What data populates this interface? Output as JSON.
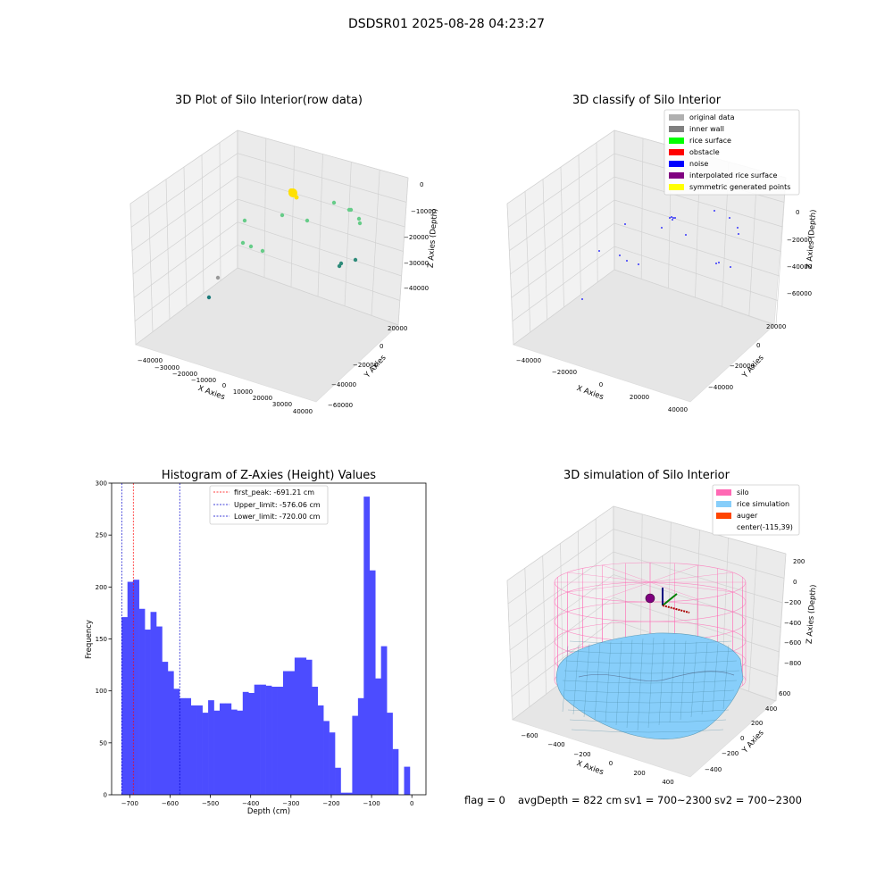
{
  "figure": {
    "suptitle": "DSDSR01 2025-08-28 04:23:27",
    "footer": {
      "flag": "flag = 0",
      "avg_depth": "avgDepth = 822 cm",
      "sv1": "sv1 = 700~2300",
      "sv2": "sv2 = 700~2300"
    }
  },
  "chart_data": [
    {
      "type": "scatter",
      "title": "3D Plot of Silo Interior(row data)",
      "xlabel": "X Axies",
      "ylabel": "Y Axies",
      "zlabel": "Z Axies (Depth)",
      "x_ticks": [
        "−40000",
        "−30000",
        "−20000",
        "−10000",
        "0",
        "10000",
        "20000",
        "30000",
        "40000"
      ],
      "y_ticks": [
        "−60000",
        "−40000",
        "−20000",
        "0",
        "20000"
      ],
      "z_ticks": [
        "0",
        "−10000",
        "−20000",
        "−30000",
        "−40000"
      ],
      "marker_colors": [
        "#ffe000",
        "#66cc88",
        "#2e8b7a",
        "#1a7a7a",
        "#999999"
      ]
    },
    {
      "type": "scatter",
      "title": "3D classify of Silo Interior",
      "xlabel": "X Axies",
      "ylabel": "Y Axies",
      "zlabel": "Z Axies (Depth)",
      "x_ticks": [
        "−40000",
        "−20000",
        "0",
        "20000",
        "40000"
      ],
      "y_ticks": [
        "−40000",
        "−20000",
        "0",
        "20000"
      ],
      "z_ticks": [
        "0",
        "−20000",
        "−40000",
        "−60000"
      ],
      "legend": [
        {
          "label": "original data",
          "color": "#b0b0b0"
        },
        {
          "label": "inner wall",
          "color": "#808080"
        },
        {
          "label": "rice surface",
          "color": "#00ff00"
        },
        {
          "label": "obstacle",
          "color": "#ff0000"
        },
        {
          "label": "noise",
          "color": "#0000ff"
        },
        {
          "label": "interpolated rice surface",
          "color": "#800080"
        },
        {
          "label": "symmetric generated points",
          "color": "#ffff00"
        }
      ]
    },
    {
      "type": "bar",
      "title": "Histogram of Z-Axies (Height) Values",
      "xlabel": "Depth (cm)",
      "ylabel": "Frequency",
      "xlim": [
        -745,
        35
      ],
      "ylim": [
        0,
        300
      ],
      "bin_width": 14.3,
      "bin_start": -720,
      "values": [
        171,
        205,
        207,
        179,
        159,
        176,
        162,
        128,
        119,
        102,
        93,
        93,
        86,
        86,
        79,
        91,
        81,
        88,
        88,
        82,
        81,
        99,
        98,
        106,
        106,
        105,
        104,
        104,
        119,
        119,
        132,
        132,
        130,
        104,
        86,
        71,
        60,
        26,
        2,
        2,
        76,
        93,
        287,
        216,
        112,
        143,
        79,
        44,
        0,
        27
      ],
      "bar_color": "#4c4cff",
      "x_ticks": [
        "−700",
        "−600",
        "−500",
        "−400",
        "−300",
        "−200",
        "−100",
        "0"
      ],
      "x_tick_values": [
        -700,
        -600,
        -500,
        -400,
        -300,
        -200,
        -100,
        0
      ],
      "y_ticks": [
        "0",
        "50",
        "100",
        "150",
        "200",
        "250",
        "300"
      ],
      "y_tick_values": [
        0,
        50,
        100,
        150,
        200,
        250,
        300
      ],
      "vlines": [
        {
          "label": "first_peak: -691.21 cm",
          "x": -691.21,
          "color": "#ff0000"
        },
        {
          "label": "Upper_limit: -576.06 cm",
          "x": -576.06,
          "color": "#0000cc"
        },
        {
          "label": "Lower_limit: -720.00 cm",
          "x": -720.0,
          "color": "#0000cc"
        }
      ]
    },
    {
      "type": "area",
      "title": "3D simulation of Silo Interior",
      "xlabel": "X Axies",
      "ylabel": "Y Axies",
      "zlabel": "Z Axies (Depth)",
      "x_ticks": [
        "−600",
        "−400",
        "−200",
        "0",
        "200",
        "400"
      ],
      "y_ticks": [
        "−400",
        "−200",
        "0",
        "200",
        "400",
        "600"
      ],
      "z_ticks": [
        "200",
        "0",
        "−200",
        "−400",
        "−600",
        "−800"
      ],
      "legend": [
        {
          "label": "silo",
          "color": "#ff69b4"
        },
        {
          "label": "rice simulation",
          "color": "#87cefa"
        },
        {
          "label": "auger",
          "color": "#ff4500"
        },
        {
          "label": "center(-115,39)",
          "color": ""
        }
      ]
    }
  ]
}
